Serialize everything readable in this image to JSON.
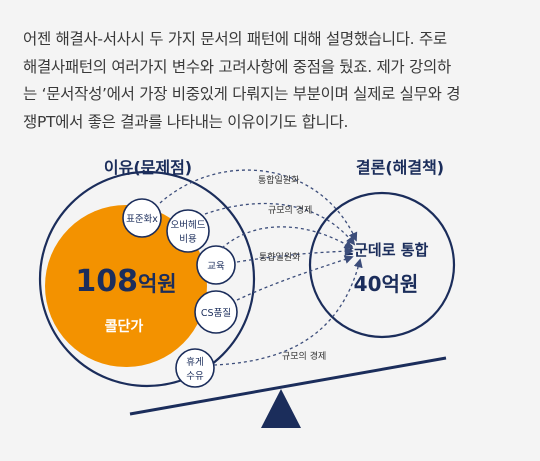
{
  "article": {
    "lines": [
      "어젠 해결사-서사시 두 가지 문서의 패턴에 대해 설명했습니다. 주로",
      "해결사패턴의 여러가지 변수와 고려사항에 중점을 뒀죠. 제가 강의하",
      "는 ‘문서작성’에서 가장 비중있게 다뤄지는 부분이며 실제로 실무와 경",
      "쟁PT에서 좋은 결과를 나타내는 이유이기도 합니다."
    ]
  },
  "diagram": {
    "left_title": "이유(문제점)",
    "right_title": "결론(해결책)",
    "big_circle": {
      "amount_number": "108",
      "amount_unit": "억원",
      "label": "콜단가"
    },
    "bubbles": {
      "standardize": "표준화x",
      "overhead_1": "오버헤드",
      "overhead_2": "비용",
      "education": "교육",
      "cs": "CS품질",
      "rest_1": "휴게",
      "rest_2": "수유"
    },
    "arrow_labels": {
      "top": "통합일원화",
      "second": "규모의 경제",
      "middle": "통합일원화",
      "bottom": "규모의 경제"
    },
    "conclusion": {
      "line1": "2군데로 통합",
      "line2": "40억원"
    },
    "colors": {
      "navy": "#1b2d5b",
      "orange": "#f39200",
      "dash": "#3c4d7a",
      "background": "#f4f4f4"
    }
  }
}
